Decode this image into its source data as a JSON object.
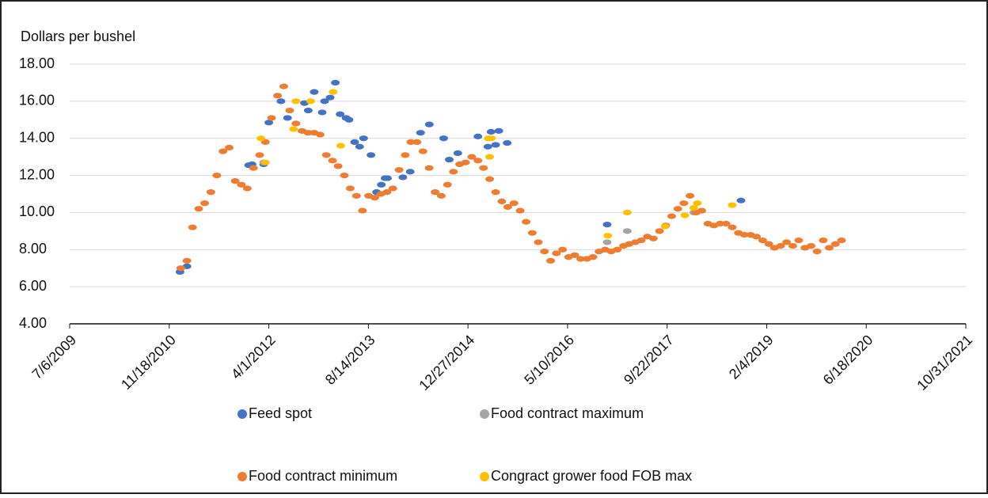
{
  "chart_data": {
    "type": "scatter",
    "y_label": "Dollars per bushel",
    "xlim": [
      "7/6/2009",
      "10/31/2021"
    ],
    "xticks": [
      "7/6/2009",
      "11/18/2010",
      "4/1/2012",
      "8/14/2013",
      "12/27/2014",
      "5/10/2016",
      "9/22/2017",
      "2/4/2019",
      "6/18/2020",
      "10/31/2021"
    ],
    "ylim": [
      4,
      18
    ],
    "yticks": [
      {
        "value": 4,
        "label": "4.00"
      },
      {
        "value": 6,
        "label": "6.00"
      },
      {
        "value": 8,
        "label": "8.00"
      },
      {
        "value": 10,
        "label": "10.00"
      },
      {
        "value": 12,
        "label": "12.00"
      },
      {
        "value": 14,
        "label": "14.00"
      },
      {
        "value": 16,
        "label": "16.00"
      },
      {
        "value": 18,
        "label": "18.00"
      }
    ],
    "grid": true,
    "legend": "bottom",
    "series": [
      {
        "name": "Feed spot",
        "color": "#4472c4",
        "x": [
          "1/11/2011",
          "2/15/2011",
          "12/22/2011",
          "1/8/2012",
          "3/6/2012",
          "4/1/2012",
          "6/1/2012",
          "7/4/2012",
          "9/27/2012",
          "10/16/2012",
          "11/15/2012",
          "12/25/2012",
          "1/6/2013",
          "2/3/2013",
          "3/1/2013",
          "3/25/2013",
          "4/24/2013",
          "5/9/2013",
          "6/6/2013",
          "7/1/2013",
          "7/21/2013",
          "8/27/2013",
          "9/24/2013",
          "10/18/2013",
          "11/6/2013",
          "11/18/2013",
          "2/3/2014",
          "3/12/2014",
          "5/3/2014",
          "6/16/2014",
          "8/27/2014",
          "9/24/2014",
          "11/6/2014",
          "2/15/2015",
          "4/6/2015",
          "4/22/2015",
          "5/15/2015",
          "5/31/2015",
          "7/12/2015",
          "11/25/2016",
          "9/28/2018"
        ],
        "values": [
          6.8,
          7.1,
          12.55,
          12.6,
          12.6,
          14.85,
          16.0,
          15.1,
          15.9,
          15.5,
          16.5,
          15.4,
          16.0,
          16.2,
          17.0,
          15.3,
          15.1,
          15.0,
          13.8,
          13.55,
          14.0,
          13.1,
          11.1,
          11.5,
          11.85,
          11.85,
          11.9,
          12.2,
          14.3,
          14.75,
          14.0,
          12.85,
          13.2,
          14.1,
          13.55,
          14.35,
          13.65,
          14.4,
          13.75,
          9.35,
          10.65
        ]
      },
      {
        "name": "Food contract maximum",
        "color": "#a5a5a5",
        "x": [
          "3/6/2012",
          "11/25/2016",
          "3/6/2017",
          "2/3/2018"
        ],
        "values": [
          12.7,
          8.4,
          9.0,
          10.0
        ]
      },
      {
        "name": "Food contract minimum",
        "color": "#ed7d31",
        "x": [
          "1/15/2011",
          "2/15/2011",
          "3/15/2011",
          "4/15/2011",
          "5/15/2011",
          "6/15/2011",
          "7/15/2011",
          "8/15/2011",
          "9/15/2011",
          "10/15/2011",
          "11/15/2011",
          "12/15/2011",
          "1/15/2012",
          "2/15/2012",
          "3/15/2012",
          "4/15/2012",
          "5/15/2012",
          "6/15/2012",
          "7/15/2012",
          "8/15/2012",
          "9/15/2012",
          "10/15/2012",
          "11/15/2012",
          "12/15/2012",
          "1/15/2013",
          "2/15/2013",
          "3/15/2013",
          "4/15/2013",
          "5/15/2013",
          "6/15/2013",
          "7/15/2013",
          "8/15/2013",
          "9/15/2013",
          "10/15/2013",
          "11/15/2013",
          "12/15/2013",
          "1/15/2014",
          "2/15/2014",
          "3/15/2014",
          "4/15/2014",
          "5/15/2014",
          "6/15/2014",
          "7/15/2014",
          "8/15/2014",
          "9/15/2014",
          "10/15/2014",
          "11/15/2014",
          "12/15/2014",
          "1/15/2015",
          "2/15/2015",
          "3/15/2015",
          "4/15/2015",
          "5/15/2015",
          "6/15/2015",
          "7/15/2015",
          "8/15/2015",
          "9/15/2015",
          "10/15/2015",
          "11/15/2015",
          "12/15/2015",
          "1/15/2016",
          "2/15/2016",
          "3/15/2016",
          "4/15/2016",
          "5/15/2016",
          "6/15/2016",
          "7/15/2016",
          "8/15/2016",
          "9/15/2016",
          "10/15/2016",
          "11/15/2016",
          "12/15/2016",
          "1/15/2017",
          "2/15/2017",
          "3/15/2017",
          "4/15/2017",
          "5/15/2017",
          "6/15/2017",
          "7/15/2017",
          "8/15/2017",
          "9/15/2017",
          "10/15/2017",
          "11/15/2017",
          "12/15/2017",
          "1/15/2018",
          "2/15/2018",
          "3/15/2018",
          "4/15/2018",
          "5/15/2018",
          "6/15/2018",
          "7/15/2018",
          "8/15/2018",
          "9/15/2018",
          "10/15/2018",
          "11/15/2018",
          "12/15/2018",
          "1/15/2019",
          "2/15/2019",
          "3/15/2019",
          "4/15/2019",
          "5/15/2019",
          "6/15/2019",
          "7/15/2019",
          "8/15/2019",
          "9/15/2019",
          "10/15/2019",
          "11/15/2019",
          "12/15/2019",
          "1/15/2020",
          "2/15/2020"
        ],
        "values": [
          7.0,
          7.4,
          9.2,
          10.2,
          10.5,
          11.1,
          12.0,
          13.3,
          13.5,
          11.7,
          11.5,
          11.3,
          12.4,
          13.1,
          13.8,
          15.1,
          16.3,
          16.8,
          15.5,
          14.8,
          14.4,
          14.3,
          14.3,
          14.2,
          13.1,
          12.8,
          12.5,
          12.0,
          11.3,
          10.9,
          10.1,
          10.9,
          10.8,
          11.0,
          11.1,
          11.3,
          12.3,
          13.1,
          13.8,
          13.8,
          13.3,
          12.4,
          11.1,
          10.9,
          11.5,
          12.2,
          12.6,
          12.7,
          13.0,
          12.8,
          12.4,
          11.8,
          11.1,
          10.6,
          10.3,
          10.5,
          10.1,
          9.5,
          8.9,
          8.4,
          7.9,
          7.4,
          7.8,
          8.0,
          7.6,
          7.7,
          7.5,
          7.5,
          7.6,
          7.9,
          8.0,
          7.9,
          8.0,
          8.2,
          8.3,
          8.4,
          8.5,
          8.7,
          8.6,
          9.0,
          9.3,
          9.8,
          10.2,
          10.5,
          10.9,
          10.0,
          10.1,
          9.4,
          9.3,
          9.4,
          9.4,
          9.2,
          8.9,
          8.8,
          8.8,
          8.7,
          8.5,
          8.3,
          8.1,
          8.2,
          8.4,
          8.2,
          8.5,
          8.1,
          8.2,
          7.9,
          8.5,
          8.1,
          8.3,
          8.5
        ]
      },
      {
        "name": "Congract grower food FOB max",
        "color": "#ffc000",
        "x": [
          "2/21/2012",
          "3/15/2012",
          "8/3/2012",
          "8/15/2012",
          "10/28/2012",
          "2/18/2013",
          "3/28/2013",
          "4/8/2015",
          "4/15/2015",
          "4/24/2015",
          "11/28/2016",
          "3/6/2017",
          "9/12/2017",
          "12/20/2017",
          "2/3/2018",
          "2/21/2018",
          "8/15/2018"
        ],
        "values": [
          14.0,
          12.7,
          14.5,
          16.0,
          16.0,
          16.5,
          13.6,
          14.0,
          13.0,
          14.0,
          8.75,
          10.0,
          9.25,
          9.85,
          10.25,
          10.5,
          10.4
        ]
      }
    ]
  }
}
